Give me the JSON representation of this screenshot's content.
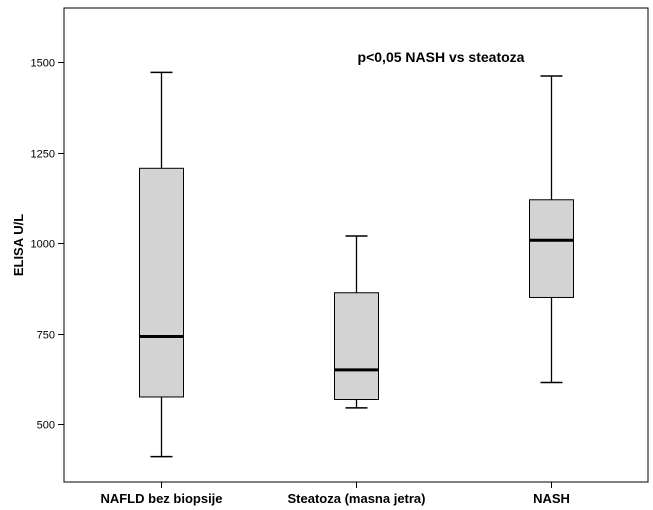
{
  "chart_data": {
    "type": "box",
    "title": "",
    "annotation": "p<0,05 NASH vs steatoza",
    "xlabel": "",
    "ylabel": "ELISA U/L",
    "ylim": [
      340,
      1650
    ],
    "yticks": [
      500,
      750,
      1000,
      1250,
      1500
    ],
    "grid": false,
    "box_color": "#d3d3d3",
    "line_color": "#000000",
    "categories": [
      "NAFLD bez biopsije",
      "Steatoza (masna jetra)",
      "NASH"
    ],
    "boxes": [
      {
        "category": "NAFLD bez biopsije",
        "min": 410,
        "q1": 575,
        "median": 742,
        "q3": 1207,
        "max": 1472
      },
      {
        "category": "Steatoza (masna jetra)",
        "min": 545,
        "q1": 568,
        "median": 650,
        "q3": 863,
        "max": 1020
      },
      {
        "category": "NASH",
        "min": 615,
        "q1": 850,
        "median": 1008,
        "q3": 1120,
        "max": 1462
      }
    ]
  }
}
